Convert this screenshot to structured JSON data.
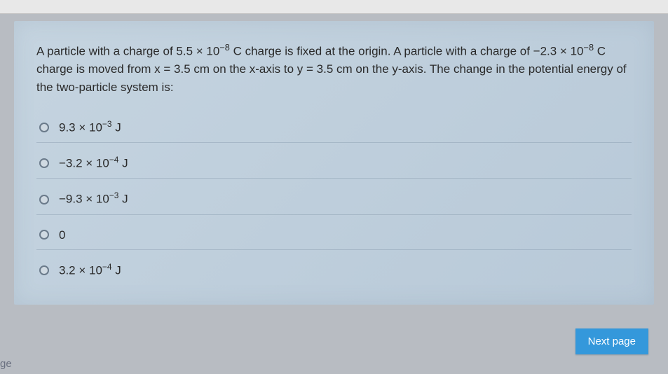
{
  "question": {
    "html": "A particle with a charge of 5.5 × 10<sup>−8</sup> C charge is fixed at the origin. A particle with a charge of −2.3 × 10<sup>−8</sup> C charge is moved from x = 3.5 cm on the x-axis to y = 3.5 cm on the y-axis. The change in the potential energy of the two-particle system is:"
  },
  "options": [
    {
      "html": "9.3 × 10<sup>−3</sup> J"
    },
    {
      "html": "−3.2 × 10<sup>−4</sup> J"
    },
    {
      "html": "−9.3 × 10<sup>−3</sup> J"
    },
    {
      "html": "0"
    },
    {
      "html": "3.2 × 10<sup>−4</sup> J"
    }
  ],
  "nextButton": "Next page",
  "partial": "ge",
  "colors": {
    "card_bg_start": "#c5d4e0",
    "card_bg_end": "#b8c9d8",
    "body_bg": "#9ca0a8",
    "content_bg": "#b8bcc2",
    "text": "#2a2a2a",
    "option_border": "rgba(120,140,160,0.35)",
    "radio_border": "#6a7a8a",
    "radio_bg": "#d0dae2",
    "button_bg": "#3498db",
    "button_text": "#ffffff"
  }
}
